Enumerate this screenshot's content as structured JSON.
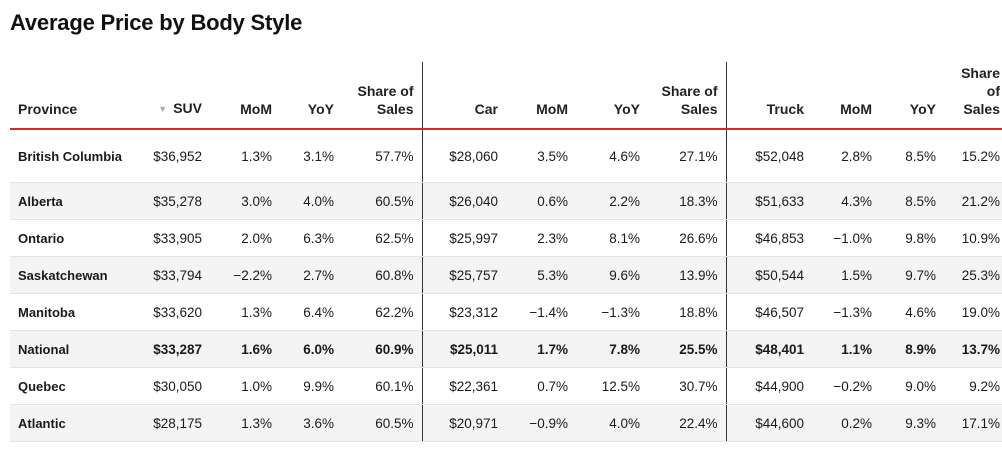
{
  "title": "Average Price by Body Style",
  "chart_data": {
    "type": "table",
    "title": "Average Price by Body Style",
    "columns": [
      {
        "label": "Province",
        "sorted": false
      },
      {
        "label": "SUV",
        "sorted": true
      },
      {
        "label": "MoM"
      },
      {
        "label": "YoY"
      },
      {
        "label": "Share of Sales"
      },
      {
        "label": "Car"
      },
      {
        "label": "MoM"
      },
      {
        "label": "YoY"
      },
      {
        "label": "Share of Sales"
      },
      {
        "label": "Truck"
      },
      {
        "label": "MoM"
      },
      {
        "label": "YoY"
      },
      {
        "label": "Share of Sales"
      }
    ],
    "rows": [
      {
        "province": "British Columbia",
        "suv": "$36,952",
        "suv_mom": "1.3%",
        "suv_yoy": "3.1%",
        "suv_share": "57.7%",
        "car": "$28,060",
        "car_mom": "3.5%",
        "car_yoy": "4.6%",
        "car_share": "27.1%",
        "truck": "$52,048",
        "truck_mom": "2.8%",
        "truck_yoy": "8.5%",
        "truck_share": "15.2%"
      },
      {
        "province": "Alberta",
        "suv": "$35,278",
        "suv_mom": "3.0%",
        "suv_yoy": "4.0%",
        "suv_share": "60.5%",
        "car": "$26,040",
        "car_mom": "0.6%",
        "car_yoy": "2.2%",
        "car_share": "18.3%",
        "truck": "$51,633",
        "truck_mom": "4.3%",
        "truck_yoy": "8.5%",
        "truck_share": "21.2%"
      },
      {
        "province": "Ontario",
        "suv": "$33,905",
        "suv_mom": "2.0%",
        "suv_yoy": "6.3%",
        "suv_share": "62.5%",
        "car": "$25,997",
        "car_mom": "2.3%",
        "car_yoy": "8.1%",
        "car_share": "26.6%",
        "truck": "$46,853",
        "truck_mom": "−1.0%",
        "truck_yoy": "9.8%",
        "truck_share": "10.9%"
      },
      {
        "province": "Saskatchewan",
        "suv": "$33,794",
        "suv_mom": "−2.2%",
        "suv_yoy": "2.7%",
        "suv_share": "60.8%",
        "car": "$25,757",
        "car_mom": "5.3%",
        "car_yoy": "9.6%",
        "car_share": "13.9%",
        "truck": "$50,544",
        "truck_mom": "1.5%",
        "truck_yoy": "9.7%",
        "truck_share": "25.3%"
      },
      {
        "province": "Manitoba",
        "suv": "$33,620",
        "suv_mom": "1.3%",
        "suv_yoy": "6.4%",
        "suv_share": "62.2%",
        "car": "$23,312",
        "car_mom": "−1.4%",
        "car_yoy": "−1.3%",
        "car_share": "18.8%",
        "truck": "$46,507",
        "truck_mom": "−1.3%",
        "truck_yoy": "4.6%",
        "truck_share": "19.0%"
      },
      {
        "province": "National",
        "suv": "$33,287",
        "suv_mom": "1.6%",
        "suv_yoy": "6.0%",
        "suv_share": "60.9%",
        "car": "$25,011",
        "car_mom": "1.7%",
        "car_yoy": "7.8%",
        "car_share": "25.5%",
        "truck": "$48,401",
        "truck_mom": "1.1%",
        "truck_yoy": "8.9%",
        "truck_share": "13.7%",
        "highlight": true
      },
      {
        "province": "Quebec",
        "suv": "$30,050",
        "suv_mom": "1.0%",
        "suv_yoy": "9.9%",
        "suv_share": "60.1%",
        "car": "$22,361",
        "car_mom": "0.7%",
        "car_yoy": "12.5%",
        "car_share": "30.7%",
        "truck": "$44,900",
        "truck_mom": "−0.2%",
        "truck_yoy": "9.0%",
        "truck_share": "9.2%"
      },
      {
        "province": "Atlantic",
        "suv": "$28,175",
        "suv_mom": "1.3%",
        "suv_yoy": "3.6%",
        "suv_share": "60.5%",
        "car": "$20,971",
        "car_mom": "−0.9%",
        "car_yoy": "4.0%",
        "car_share": "22.4%",
        "truck": "$44,600",
        "truck_mom": "0.2%",
        "truck_yoy": "9.3%",
        "truck_share": "17.1%"
      }
    ]
  },
  "colors": {
    "header_rule": "#d9262c",
    "alt_row": "#f4f4f4",
    "divider": "#333333",
    "sort_icon": "#aaaaaa"
  },
  "icons": {
    "sort": "sort-descending-icon"
  }
}
